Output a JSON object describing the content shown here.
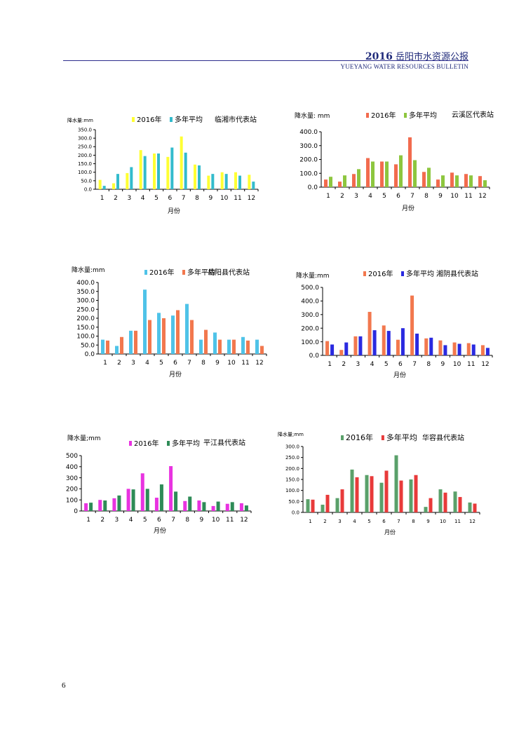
{
  "header": {
    "year": "2016",
    "title": "岳阳市水资源公报",
    "subtitle": "YUEYANG WATER RESOURCES BULLETIN"
  },
  "page_number": "6",
  "chart_data": [
    {
      "type": "bar",
      "title": "临湘市代表站",
      "ylabel": "降水量:mm",
      "xlabel": "月份",
      "categories": [
        "1",
        "2",
        "3",
        "4",
        "5",
        "6",
        "7",
        "8",
        "9",
        "10",
        "11",
        "12"
      ],
      "ylim": [
        0,
        350
      ],
      "yticks": [
        "0.0",
        "50.0",
        "100.0",
        "150.0",
        "200.0",
        "250.0",
        "300.0",
        "350.0"
      ],
      "series": [
        {
          "name": "2016年",
          "color": "#ffff33",
          "values": [
            55,
            35,
            95,
            230,
            210,
            190,
            310,
            145,
            80,
            100,
            100,
            85
          ]
        },
        {
          "name": "多年平均",
          "color": "#33bbcc",
          "values": [
            20,
            90,
            130,
            195,
            210,
            245,
            215,
            140,
            90,
            90,
            80,
            45
          ]
        }
      ]
    },
    {
      "type": "bar",
      "title": "云溪区代表站",
      "ylabel": "降水量: mm",
      "xlabel": "月份",
      "categories": [
        "1",
        "2",
        "3",
        "4",
        "5",
        "6",
        "7",
        "8",
        "9",
        "10",
        "11",
        "12"
      ],
      "ylim": [
        0,
        400
      ],
      "yticks": [
        "0.0",
        "100.0",
        "200.0",
        "300.0",
        "400.0"
      ],
      "series": [
        {
          "name": "2016年",
          "color": "#f26b4e",
          "values": [
            55,
            40,
            95,
            210,
            185,
            165,
            360,
            110,
            55,
            105,
            95,
            80
          ]
        },
        {
          "name": "多年平均",
          "color": "#8dc63f",
          "values": [
            75,
            85,
            130,
            185,
            185,
            230,
            195,
            140,
            85,
            85,
            85,
            50
          ]
        }
      ]
    },
    {
      "type": "bar",
      "title": "岳阳县代表站",
      "ylabel": "降水量:mm",
      "xlabel": "月份",
      "categories": [
        "1",
        "2",
        "3",
        "4",
        "5",
        "6",
        "7",
        "8",
        "9",
        "10",
        "11",
        "12"
      ],
      "ylim": [
        0,
        400
      ],
      "yticks": [
        "0.0",
        "50.0",
        "100.0",
        "150.0",
        "200.0",
        "250.0",
        "300.0",
        "350.0",
        "400.0"
      ],
      "series": [
        {
          "name": "2016年",
          "color": "#4fc3e8",
          "values": [
            80,
            45,
            130,
            360,
            230,
            215,
            280,
            80,
            120,
            80,
            95,
            80
          ]
        },
        {
          "name": "多年平均",
          "color": "#f2784e",
          "values": [
            75,
            95,
            130,
            190,
            200,
            245,
            190,
            135,
            80,
            80,
            75,
            45
          ]
        }
      ]
    },
    {
      "type": "bar",
      "title": "湘阴县代表站",
      "ylabel": "降水量:mm",
      "xlabel": "月份",
      "categories": [
        "1",
        "2",
        "3",
        "4",
        "5",
        "6",
        "7",
        "8",
        "9",
        "10",
        "11",
        "12"
      ],
      "ylim": [
        0,
        500
      ],
      "yticks": [
        "0.0",
        "100.0",
        "200.0",
        "300.0",
        "400.0",
        "500.0"
      ],
      "series": [
        {
          "name": "2016年",
          "color": "#f2784e",
          "values": [
            105,
            40,
            140,
            320,
            220,
            115,
            440,
            125,
            110,
            95,
            90,
            75
          ]
        },
        {
          "name": "多年平均",
          "color": "#2a2ae0",
          "values": [
            80,
            95,
            140,
            185,
            180,
            200,
            160,
            130,
            75,
            85,
            80,
            55
          ]
        }
      ]
    },
    {
      "type": "bar",
      "title": "平江县代表站",
      "ylabel": "降水量;mm",
      "xlabel": "月份",
      "categories": [
        "1",
        "2",
        "3",
        "4",
        "5",
        "6",
        "7",
        "8",
        "9",
        "10",
        "11",
        "12"
      ],
      "ylim": [
        0,
        500
      ],
      "yticks": [
        "0",
        "100",
        "200",
        "300",
        "400",
        "500"
      ],
      "series": [
        {
          "name": "2016年",
          "color": "#e833e0",
          "values": [
            70,
            100,
            115,
            200,
            340,
            120,
            405,
            90,
            95,
            45,
            65,
            70
          ]
        },
        {
          "name": "多年平均",
          "color": "#2e8b57",
          "values": [
            75,
            95,
            140,
            195,
            200,
            240,
            175,
            130,
            80,
            85,
            80,
            50
          ]
        }
      ]
    },
    {
      "type": "bar",
      "title": "华容县代表站",
      "ylabel": "降水量;mm",
      "xlabel": "月份",
      "categories": [
        "1",
        "2",
        "3",
        "4",
        "5",
        "6",
        "7",
        "8",
        "9",
        "10",
        "11",
        "12"
      ],
      "ylim": [
        0,
        300
      ],
      "yticks": [
        "0.0",
        "50.0",
        "100.0",
        "150.0",
        "200.0",
        "250.0",
        "300.0"
      ],
      "series": [
        {
          "name": "2016年",
          "color": "#5aa06a",
          "values": [
            60,
            35,
            65,
            195,
            170,
            135,
            260,
            150,
            25,
            105,
            95,
            45
          ]
        },
        {
          "name": "多年平均",
          "color": "#e83a3a",
          "values": [
            58,
            80,
            105,
            160,
            165,
            190,
            145,
            170,
            65,
            90,
            70,
            40
          ]
        }
      ]
    }
  ]
}
